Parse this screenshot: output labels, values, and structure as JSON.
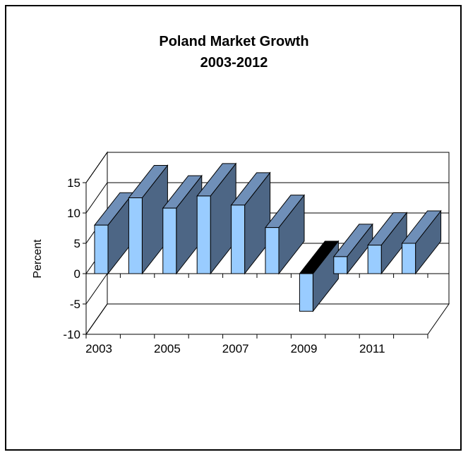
{
  "chart_data": {
    "type": "bar",
    "title_lines": [
      "Poland Market Growth",
      "2003-2012"
    ],
    "ylabel": "Percent",
    "xlabel": "",
    "categories": [
      "2003",
      "2004",
      "2005",
      "2006",
      "2007",
      "2008",
      "2009",
      "2010",
      "2011",
      "2012"
    ],
    "x_tick_labels": [
      "2003",
      "2005",
      "2007",
      "2009",
      "2011"
    ],
    "values": [
      8,
      12.5,
      10.8,
      12.8,
      11.3,
      7.6,
      -6.2,
      2.8,
      4.7,
      5.0
    ],
    "ylim": [
      -10,
      15
    ],
    "yticks": [
      -10,
      -5,
      0,
      5,
      10,
      15
    ],
    "ytick_labels": [
      "-10",
      "-5",
      "0",
      "5",
      "10",
      "15"
    ],
    "grid": true,
    "style": "3d-column",
    "colors": {
      "front": "#99ccff",
      "side": "#4d6685",
      "top": "#6f8fb8",
      "negative_top": "#000000",
      "outline": "#000000"
    }
  }
}
